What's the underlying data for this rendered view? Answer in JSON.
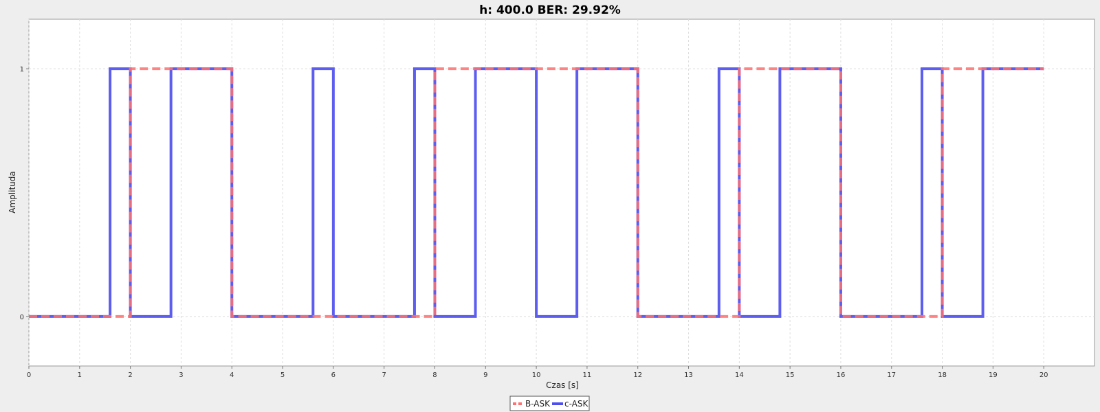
{
  "chart_data": {
    "type": "line",
    "title": "h: 400.0 BER: 29.92%",
    "xlabel": "Czas [s]",
    "ylabel": "Amplituda",
    "xlim": [
      0,
      21
    ],
    "ylim": [
      -0.2,
      1.2
    ],
    "x_ticks": [
      0,
      1,
      2,
      3,
      4,
      5,
      6,
      7,
      8,
      9,
      10,
      11,
      12,
      13,
      14,
      15,
      16,
      17,
      18,
      19,
      20
    ],
    "y_ticks": [
      0,
      1
    ],
    "grid": true,
    "legend_placement": "bottom",
    "series": [
      {
        "name": "B-ASK",
        "color": "#ff7070",
        "style": "dashed",
        "step": "post",
        "x": [
          0,
          2,
          4,
          8,
          12,
          14,
          16,
          18,
          20
        ],
        "y": [
          0,
          1,
          0,
          1,
          0,
          1,
          0,
          1,
          1
        ]
      },
      {
        "name": "c-ASK",
        "color": "#4f4fef",
        "style": "solid",
        "step": "post",
        "x": [
          0,
          1.6,
          2,
          2.8,
          4,
          5.6,
          6,
          7.6,
          8,
          8.8,
          10,
          10.8,
          12,
          13.6,
          14,
          14.8,
          16,
          17.6,
          18,
          18.8,
          20
        ],
        "y": [
          0,
          1,
          0,
          1,
          0,
          1,
          0,
          1,
          0,
          1,
          0,
          1,
          0,
          1,
          0,
          1,
          0,
          1,
          0,
          1,
          1
        ]
      }
    ]
  }
}
